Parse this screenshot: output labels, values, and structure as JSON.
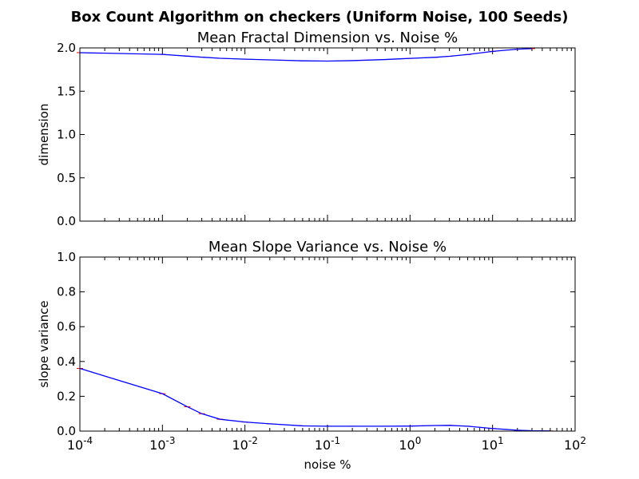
{
  "figure": {
    "suptitle": "Box Count Algorithm on checkers (Uniform Noise, 100 Seeds)"
  },
  "chart_data": [
    {
      "type": "line",
      "title": "Mean Fractal Dimension vs. Noise %",
      "xlabel": "",
      "ylabel": "dimension",
      "xscale": "log",
      "xlim": [
        0.0001,
        100
      ],
      "ylim": [
        0.0,
        2.0
      ],
      "yticks": [
        "0.0",
        "0.5",
        "1.0",
        "1.5",
        "2.0"
      ],
      "xtick_labels_visible": false,
      "line_color": "#0000ff",
      "errorbar_color": "#ff0000",
      "series": [
        {
          "name": "mean dimension",
          "x": [
            0.0001,
            0.001,
            0.002,
            0.003,
            0.005,
            0.01,
            0.02,
            0.05,
            0.1,
            0.2,
            0.5,
            1,
            2,
            3,
            5,
            10,
            20,
            30
          ],
          "y": [
            1.945,
            1.925,
            1.905,
            1.893,
            1.88,
            1.87,
            1.862,
            1.851,
            1.848,
            1.853,
            1.866,
            1.879,
            1.891,
            1.903,
            1.924,
            1.96,
            1.985,
            1.992
          ]
        }
      ]
    },
    {
      "type": "line",
      "title": "Mean Slope Variance vs. Noise %",
      "xlabel": "noise %",
      "ylabel": "slope variance",
      "xscale": "log",
      "xlim": [
        0.0001,
        100
      ],
      "ylim": [
        0.0,
        1.0
      ],
      "yticks": [
        "0.0",
        "0.2",
        "0.4",
        "0.6",
        "0.8",
        "1.0"
      ],
      "xtick_labels_visible": true,
      "xtick_exponents": [
        "-4",
        "-3",
        "-2",
        "-1",
        "0",
        "1",
        "2"
      ],
      "line_color": "#0000ff",
      "errorbar_color": "#ff0000",
      "series": [
        {
          "name": "mean slope variance",
          "x": [
            0.0001,
            0.001,
            0.002,
            0.003,
            0.005,
            0.01,
            0.02,
            0.05,
            0.1,
            0.2,
            0.5,
            1,
            2,
            3,
            5,
            10,
            20,
            30,
            50
          ],
          "y": [
            0.36,
            0.215,
            0.14,
            0.1,
            0.068,
            0.052,
            0.042,
            0.03,
            0.028,
            0.028,
            0.028,
            0.029,
            0.032,
            0.033,
            0.028,
            0.015,
            0.005,
            0.002,
            0.001
          ]
        }
      ]
    }
  ]
}
